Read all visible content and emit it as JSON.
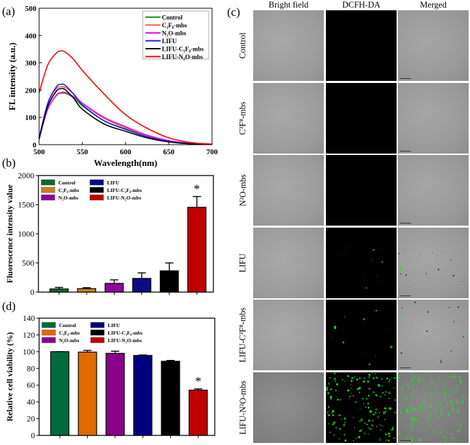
{
  "panel_labels": {
    "a": "(a)",
    "b": "(b)",
    "c": "(c)",
    "d": "(d)"
  },
  "chart_data": [
    {
      "id": "a",
      "type": "line",
      "xlabel": "Wavelength(nm)",
      "ylabel": "FL intensity (a.u.)",
      "xlim": [
        500,
        700
      ],
      "ylim": [
        0,
        500
      ],
      "xticks": [
        500,
        550,
        600,
        650,
        700
      ],
      "yticks": [
        0,
        100,
        200,
        300,
        400,
        500
      ],
      "legend_placement": "top-right",
      "x": [
        500,
        510,
        520,
        525,
        530,
        540,
        550,
        575,
        600,
        625,
        650,
        675,
        700
      ],
      "series": [
        {
          "name": "Control",
          "color": "#1e9a1e",
          "values": [
            25,
            130,
            180,
            188,
            188,
            172,
            142,
            88,
            58,
            30,
            12,
            4,
            1
          ]
        },
        {
          "name": "C₃F₈-mbs",
          "color": "#ff5a2a",
          "values": [
            25,
            150,
            205,
            212,
            210,
            186,
            152,
            97,
            63,
            33,
            14,
            5,
            1
          ]
        },
        {
          "name": "N₂O-mbs",
          "color": "#ff00ff",
          "values": [
            22,
            130,
            182,
            190,
            192,
            176,
            152,
            100,
            66,
            35,
            15,
            5,
            1
          ]
        },
        {
          "name": "LIFU",
          "color": "#1a1aff",
          "values": [
            25,
            152,
            212,
            221,
            218,
            185,
            146,
            88,
            56,
            29,
            12,
            4,
            1
          ]
        },
        {
          "name": "LIFU-C₃F₈-mbs",
          "color": "#000000",
          "values": [
            20,
            140,
            196,
            205,
            202,
            170,
            130,
            76,
            49,
            25,
            10,
            3,
            1
          ]
        },
        {
          "name": "LIFU-N₂O-mbs",
          "color": "#ff0000",
          "values": [
            190,
            292,
            336,
            343,
            340,
            312,
            272,
            186,
            110,
            60,
            25,
            8,
            2
          ]
        }
      ]
    },
    {
      "id": "b",
      "type": "bar",
      "ylabel": "Fluorescence intensity value",
      "ylim": [
        0,
        2000
      ],
      "yticks": [
        0,
        500,
        1000,
        1500,
        2000
      ],
      "legend_placement": "top-left",
      "categories": [
        "Control",
        "C₃F₈-mbs",
        "N₂O-mbs",
        "LIFU",
        "LIFU-C₃F₈-mbs",
        "LIFU-N₂O-mbs"
      ],
      "values": [
        55,
        60,
        150,
        235,
        365,
        1455
      ],
      "errors": [
        25,
        15,
        60,
        95,
        135,
        185
      ],
      "colors": [
        "#0b6b2b",
        "#c9801c",
        "#8a0a98",
        "#0c0c86",
        "#000000",
        "#c00000"
      ],
      "annotations": [
        {
          "category": "LIFU-N₂O-mbs",
          "text": "*"
        }
      ]
    },
    {
      "id": "d",
      "type": "bar",
      "ylabel": "Relative cell viability (%)",
      "ylim": [
        0,
        140
      ],
      "yticks": [
        0,
        20,
        40,
        60,
        80,
        100,
        120,
        140
      ],
      "legend_placement": "top-left",
      "categories": [
        "Control",
        "C₃F₈-mbs",
        "N₂O-mbs",
        "LIFU",
        "LIFU-C₃F₈-mbs",
        "LIFU-N₂O-mbs"
      ],
      "values": [
        100,
        99.5,
        98,
        95.5,
        88.5,
        54
      ],
      "errors": [
        0,
        2,
        2.5,
        0.5,
        1,
        1.5
      ],
      "colors": [
        "#006b3c",
        "#e06a00",
        "#8b008b",
        "#00007e",
        "#000000",
        "#c00000"
      ],
      "annotations": [
        {
          "category": "LIFU-N₂O-mbs",
          "text": "*"
        }
      ]
    }
  ],
  "microscopy": {
    "columns": [
      "Bright field",
      "DCFH-DA",
      "Merged"
    ],
    "rows": [
      {
        "label": "Control",
        "fluorescence_level": 0
      },
      {
        "label": "C³F⁸-mbs",
        "fluorescence_level": 0
      },
      {
        "label": "N²O-mbs",
        "fluorescence_level": 0
      },
      {
        "label": "LIFU",
        "fluorescence_level": 0.02
      },
      {
        "label": "LIFU-C³F⁸-mbs",
        "fluorescence_level": 0.05
      },
      {
        "label": "LIFU-N²O-mbs",
        "fluorescence_level": 1
      }
    ],
    "fluorescence_color": "#22e022"
  }
}
